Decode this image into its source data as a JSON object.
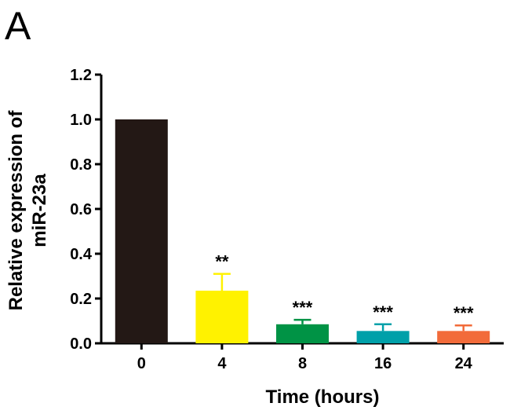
{
  "panel_label": "A",
  "chart_data": {
    "type": "bar",
    "categories": [
      "0",
      "4",
      "8",
      "16",
      "24"
    ],
    "values": [
      1.0,
      0.235,
      0.085,
      0.055,
      0.055
    ],
    "errors": [
      0.0,
      0.075,
      0.02,
      0.03,
      0.025
    ],
    "significance": [
      "",
      "**",
      "***",
      "***",
      "***"
    ],
    "colors": [
      "#231815",
      "#fff200",
      "#009345",
      "#00a0a9",
      "#f26b3a"
    ],
    "xlabel": "Time (hours)",
    "ylabel_line1": "Relative  expression of",
    "ylabel_line2": "miR-23a",
    "ylim": [
      0,
      1.2
    ],
    "yticks": [
      "0.0",
      "0.2",
      "0.4",
      "0.6",
      "0.8",
      "1.0",
      "1.2"
    ],
    "grid": false,
    "legend": "none"
  }
}
